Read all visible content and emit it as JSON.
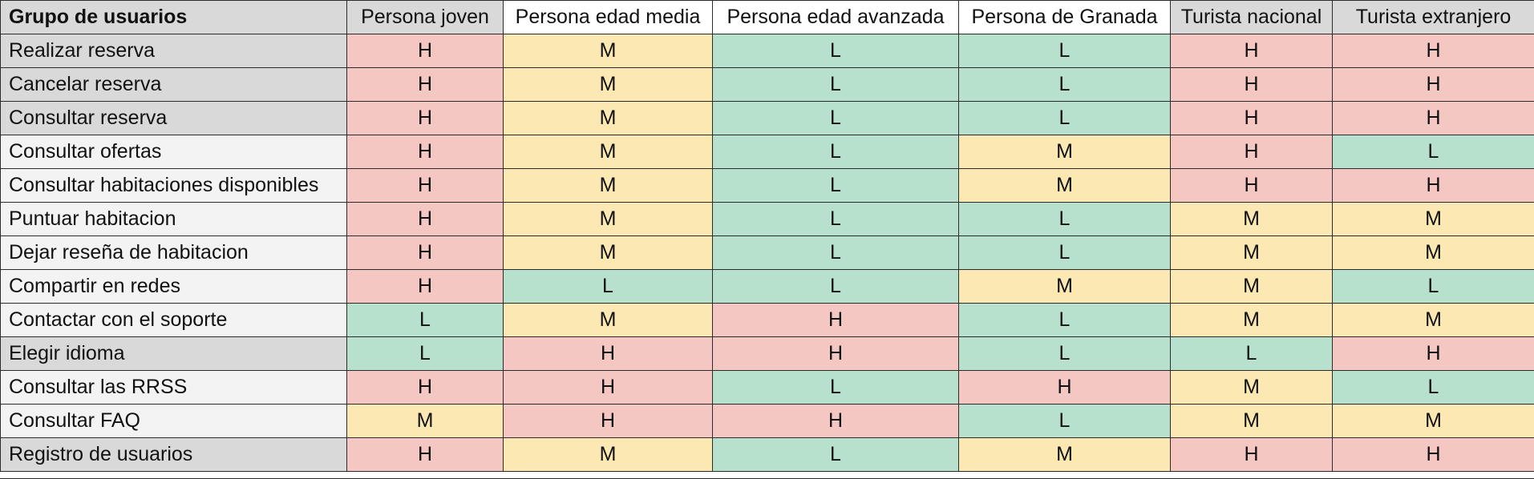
{
  "header": {
    "corner_label": "Grupo de usuarios",
    "columns": [
      "Persona joven",
      "Persona edad media",
      "Persona edad avanzada",
      "Persona de Granada",
      "Turista nacional",
      "Turista extranjero"
    ]
  },
  "rows": [
    {
      "label": "Realizar reserva",
      "values": [
        "H",
        "M",
        "L",
        "L",
        "H",
        "H"
      ]
    },
    {
      "label": "Cancelar reserva",
      "values": [
        "H",
        "M",
        "L",
        "L",
        "H",
        "H"
      ]
    },
    {
      "label": "Consultar reserva",
      "values": [
        "H",
        "M",
        "L",
        "L",
        "H",
        "H"
      ]
    },
    {
      "label": "Consultar ofertas",
      "values": [
        "H",
        "M",
        "L",
        "M",
        "H",
        "L"
      ]
    },
    {
      "label": "Consultar habitaciones disponibles",
      "values": [
        "H",
        "M",
        "L",
        "M",
        "H",
        "H"
      ]
    },
    {
      "label": "Puntuar habitacion",
      "values": [
        "H",
        "M",
        "L",
        "L",
        "M",
        "M"
      ]
    },
    {
      "label": "Dejar reseña de habitacion",
      "values": [
        "H",
        "M",
        "L",
        "L",
        "M",
        "M"
      ]
    },
    {
      "label": "Compartir en redes",
      "values": [
        "H",
        "L",
        "L",
        "M",
        "M",
        "L"
      ]
    },
    {
      "label": "Contactar con el soporte",
      "values": [
        "L",
        "M",
        "H",
        "L",
        "M",
        "M"
      ]
    },
    {
      "label": "Elegir idioma",
      "values": [
        "L",
        "H",
        "H",
        "L",
        "L",
        "H"
      ]
    },
    {
      "label": "Consultar las RRSS",
      "values": [
        "H",
        "H",
        "L",
        "H",
        "M",
        "L"
      ]
    },
    {
      "label": "Consultar FAQ",
      "values": [
        "M",
        "H",
        "H",
        "L",
        "M",
        "M"
      ]
    },
    {
      "label": "Registro de usuarios",
      "values": [
        "H",
        "M",
        "L",
        "M",
        "H",
        "H"
      ]
    }
  ],
  "colors": {
    "H": "#f4c7c3",
    "M": "#fce8b2",
    "L": "#b7e1cd",
    "header_gray": "#d9d9d9",
    "label_light": "#f3f3f3",
    "border": "#2b2b2b"
  }
}
